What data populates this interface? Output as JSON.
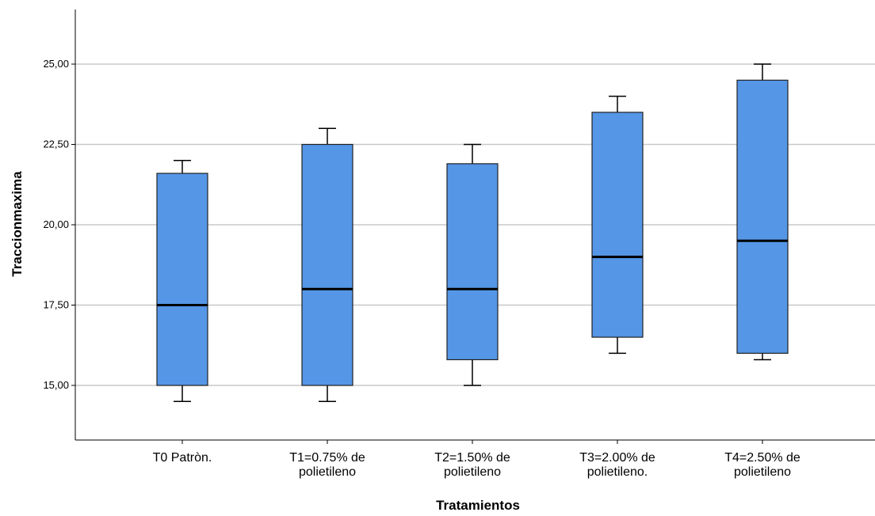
{
  "chart_data": {
    "type": "boxplot",
    "xlabel": "Tratamientos",
    "ylabel": "Traccionmaxima",
    "ylim": [
      13.3,
      26.7
    ],
    "yticks": [
      15.0,
      17.5,
      20.0,
      22.5,
      25.0
    ],
    "ytick_labels": [
      "15,00",
      "17,50",
      "20,00",
      "22,50",
      "25,00"
    ],
    "grid": true,
    "box_color": "#5596e6",
    "categories": [
      {
        "label_lines": [
          "T0 Patròn."
        ],
        "whisker_low": 14.5,
        "q1": 15.0,
        "median": 17.5,
        "q3": 21.6,
        "whisker_high": 22.0
      },
      {
        "label_lines": [
          "T1=0.75% de",
          "polietileno"
        ],
        "whisker_low": 14.5,
        "q1": 15.0,
        "median": 18.0,
        "q3": 22.5,
        "whisker_high": 23.0
      },
      {
        "label_lines": [
          "T2=1.50% de",
          "polietileno"
        ],
        "whisker_low": 15.0,
        "q1": 15.8,
        "median": 18.0,
        "q3": 21.9,
        "whisker_high": 22.5
      },
      {
        "label_lines": [
          "T3=2.00% de",
          "polietileno."
        ],
        "whisker_low": 16.0,
        "q1": 16.5,
        "median": 19.0,
        "q3": 23.5,
        "whisker_high": 24.0
      },
      {
        "label_lines": [
          "T4=2.50% de",
          "polietileno"
        ],
        "whisker_low": 15.8,
        "q1": 16.0,
        "median": 19.5,
        "q3": 24.5,
        "whisker_high": 25.0
      }
    ]
  }
}
